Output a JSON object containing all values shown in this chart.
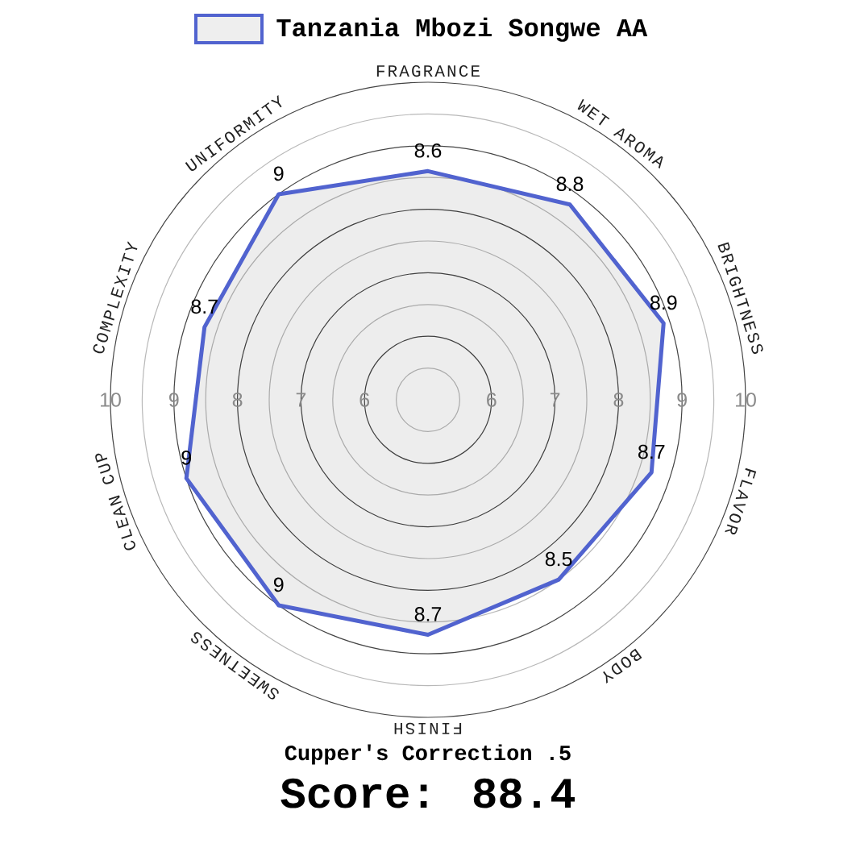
{
  "chart_data": {
    "type": "radar",
    "categories": [
      "FRAGRANCE",
      "WET AROMA",
      "BRIGHTNESS",
      "FLAVOR",
      "BODY",
      "FINISH",
      "SWEETNESS",
      "CLEAN CUP",
      "COMPLEXITY",
      "UNIFORMITY"
    ],
    "series": [
      {
        "name": "Tanzania Mbozi Songwe AA",
        "color": "#5163cf",
        "values": [
          8.6,
          8.8,
          8.9,
          8.7,
          8.5,
          8.7,
          9,
          9,
          8.7,
          9
        ]
      }
    ],
    "ylim": [
      5,
      10
    ],
    "yticks": [
      10,
      9,
      8,
      7,
      6,
      6,
      7,
      8,
      9,
      10
    ],
    "grid": true,
    "legend": "top",
    "data_labels": true,
    "annotations": [
      "Cupper's Correction .5",
      "Score: 88.4"
    ]
  }
}
